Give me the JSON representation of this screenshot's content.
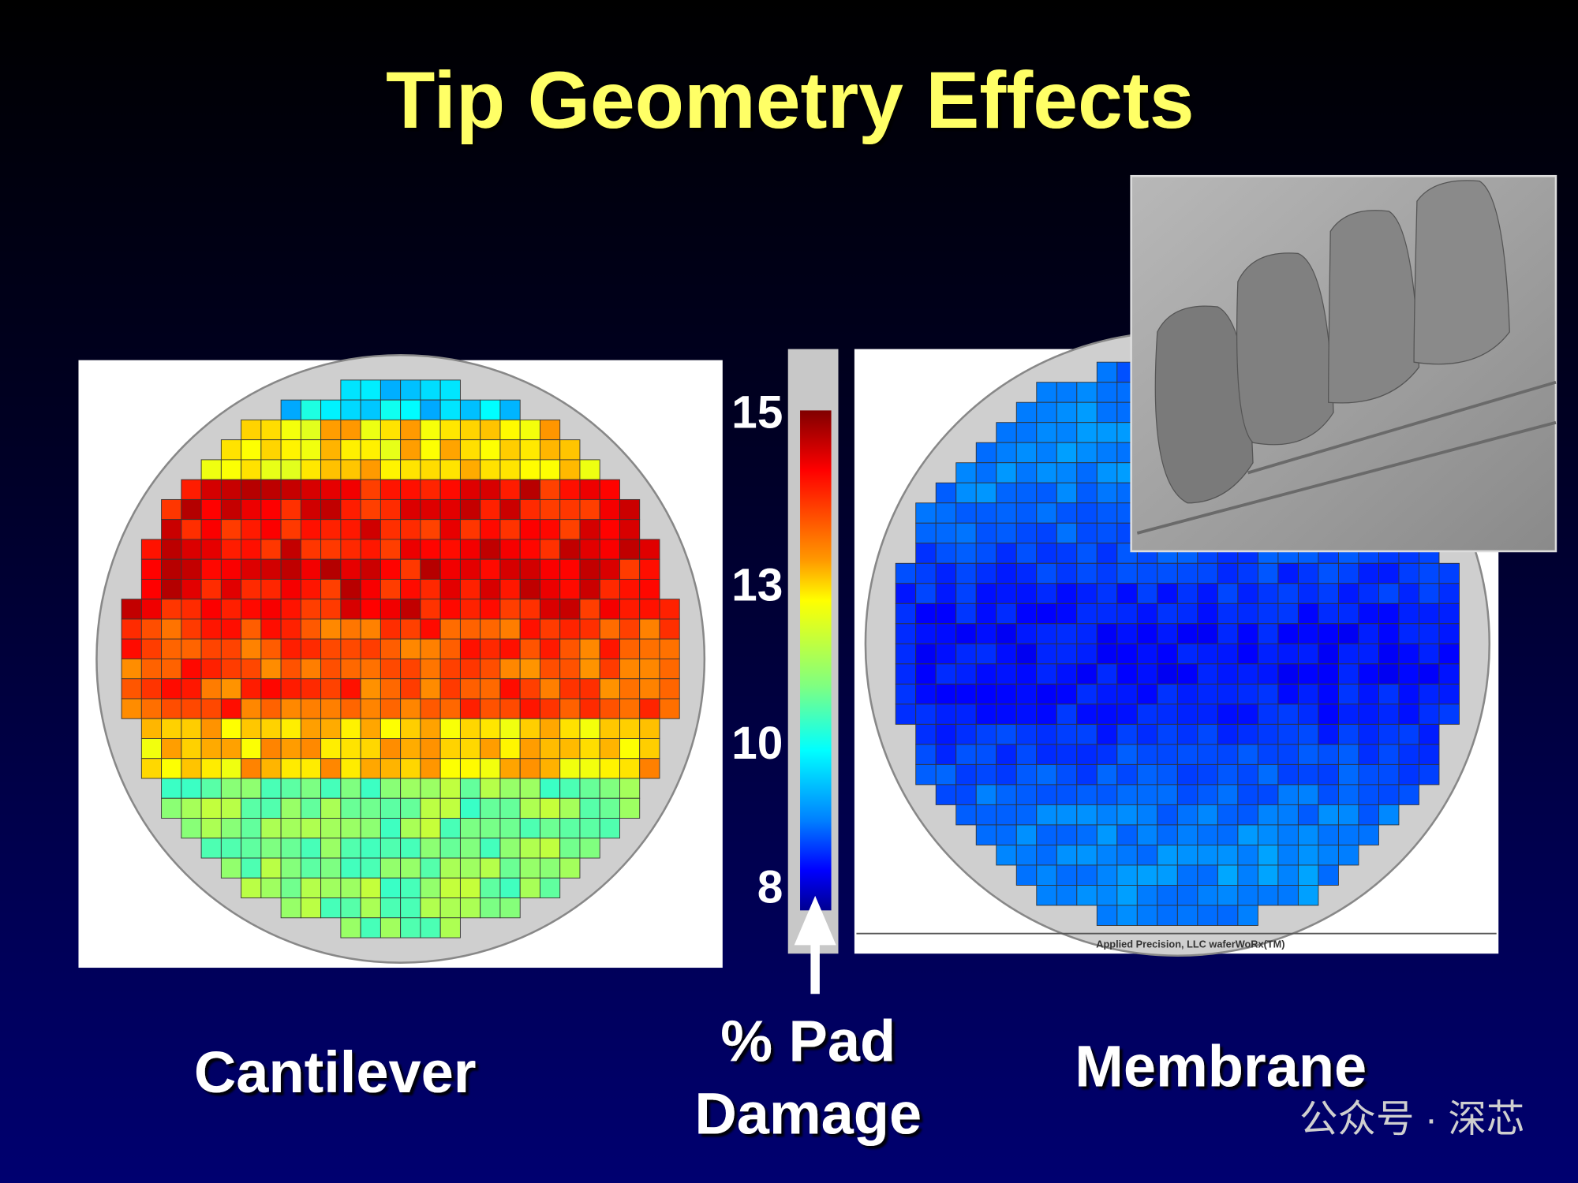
{
  "title": "Tip Geometry Effects",
  "panels": [
    {
      "label": "Cantilever"
    },
    {
      "label": "Membrane",
      "footer": "Applied Precision, LLC  waferWoRx(TM)"
    }
  ],
  "colorbar": {
    "ticks": [
      15,
      13,
      10,
      8
    ],
    "caption": [
      "% Pad",
      "Damage"
    ]
  },
  "watermark": "公众号 · 深芯"
}
